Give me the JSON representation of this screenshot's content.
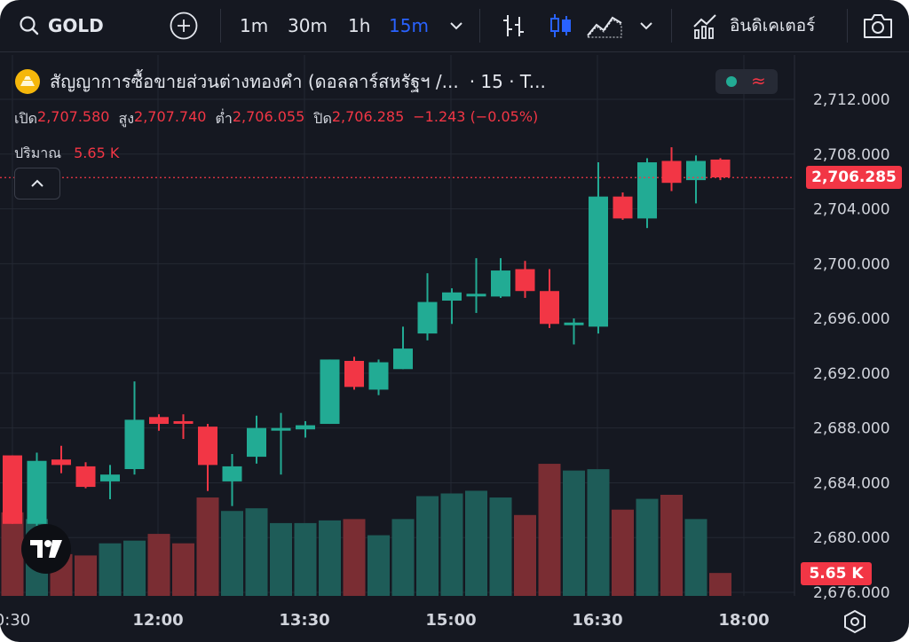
{
  "toolbar": {
    "symbol": "GOLD",
    "intervals": [
      "1m",
      "30m",
      "1h",
      "15m"
    ],
    "active_interval": "15m",
    "indicators_label": "อินดิเคเตอร์"
  },
  "legend": {
    "title": "สัญญาการซื้อขายส่วนต่างทองคำ (ดอลลาร์สหรัฐฯ /...",
    "title_suffix": "· 15 · T...",
    "open_label": "เปิด",
    "open": "2,707.580",
    "high_label": "สูง",
    "high": "2,707.740",
    "low_label": "ต่ำ",
    "low": "2,706.055",
    "close_label": "ปิด",
    "close": "2,706.285",
    "change": "−1.243 (−0.05%)",
    "volume_label": "ปริมาณ",
    "volume": "5.65 K"
  },
  "price_tag": "2,706.285",
  "volume_tag": "5.65 K",
  "colors": {
    "bg": "#151821",
    "up": "#22ab94",
    "down": "#f23645",
    "up_vol": "#1e5c58",
    "down_vol": "#7a2d33",
    "grid": "#242833",
    "text": "#d1d4dc",
    "accent": "#2962ff"
  },
  "chart_data": {
    "type": "candlestick",
    "y_ticks": [
      "2,712.000",
      "2,708.000",
      "2,704.000",
      "2,700.000",
      "2,696.000",
      "2,692.000",
      "2,688.000",
      "2,684.000",
      "2,680.000",
      "2,676.000"
    ],
    "x_ticks": [
      "0:30",
      "12:00",
      "13:30",
      "15:00",
      "16:30",
      "18:00"
    ],
    "ylim": [
      2676,
      2712
    ],
    "candles": [
      {
        "o": 2686.0,
        "h": 2686.0,
        "l": 2681.0,
        "c": 2681.0
      },
      {
        "o": 2681.0,
        "h": 2686.2,
        "l": 2680.8,
        "c": 2685.6
      },
      {
        "o": 2685.7,
        "h": 2686.7,
        "l": 2684.7,
        "c": 2685.3
      },
      {
        "o": 2685.2,
        "h": 2685.5,
        "l": 2683.6,
        "c": 2683.7
      },
      {
        "o": 2684.1,
        "h": 2685.3,
        "l": 2682.8,
        "c": 2684.6
      },
      {
        "o": 2685.0,
        "h": 2691.4,
        "l": 2684.6,
        "c": 2688.6
      },
      {
        "o": 2688.8,
        "h": 2689.0,
        "l": 2687.8,
        "c": 2688.3
      },
      {
        "o": 2688.5,
        "h": 2689.0,
        "l": 2687.2,
        "c": 2688.4
      },
      {
        "o": 2688.1,
        "h": 2688.3,
        "l": 2683.4,
        "c": 2685.3
      },
      {
        "o": 2684.1,
        "h": 2686.1,
        "l": 2682.3,
        "c": 2685.2
      },
      {
        "o": 2685.9,
        "h": 2688.9,
        "l": 2685.4,
        "c": 2688.0
      },
      {
        "o": 2688.0,
        "h": 2689.1,
        "l": 2684.6,
        "c": 2688.0
      },
      {
        "o": 2687.9,
        "h": 2688.5,
        "l": 2687.3,
        "c": 2688.2
      },
      {
        "o": 2688.3,
        "h": 2693.0,
        "l": 2688.3,
        "c": 2693.0
      },
      {
        "o": 2692.9,
        "h": 2693.2,
        "l": 2690.8,
        "c": 2691.0
      },
      {
        "o": 2690.8,
        "h": 2693.0,
        "l": 2690.4,
        "c": 2692.8
      },
      {
        "o": 2692.3,
        "h": 2695.4,
        "l": 2692.3,
        "c": 2693.8
      },
      {
        "o": 2694.9,
        "h": 2699.3,
        "l": 2694.4,
        "c": 2697.2
      },
      {
        "o": 2697.3,
        "h": 2698.2,
        "l": 2695.6,
        "c": 2697.9
      },
      {
        "o": 2697.8,
        "h": 2700.4,
        "l": 2696.4,
        "c": 2697.8
      },
      {
        "o": 2697.6,
        "h": 2700.4,
        "l": 2697.5,
        "c": 2699.5
      },
      {
        "o": 2699.6,
        "h": 2700.2,
        "l": 2697.5,
        "c": 2698.0
      },
      {
        "o": 2698.0,
        "h": 2699.6,
        "l": 2695.3,
        "c": 2695.6
      },
      {
        "o": 2695.7,
        "h": 2696.0,
        "l": 2694.1,
        "c": 2695.7
      },
      {
        "o": 2695.4,
        "h": 2707.4,
        "l": 2694.9,
        "c": 2704.9
      },
      {
        "o": 2704.9,
        "h": 2705.2,
        "l": 2703.2,
        "c": 2703.3
      },
      {
        "o": 2703.3,
        "h": 2707.7,
        "l": 2702.6,
        "c": 2707.4
      },
      {
        "o": 2707.5,
        "h": 2708.5,
        "l": 2705.3,
        "c": 2705.9
      },
      {
        "o": 2706.1,
        "h": 2707.9,
        "l": 2704.4,
        "c": 2707.5
      },
      {
        "o": 2707.6,
        "h": 2707.7,
        "l": 2706.1,
        "c": 2706.3
      }
    ],
    "volume_bars_relative": [
      0.62,
      0.57,
      0.31,
      0.3,
      0.39,
      0.41,
      0.46,
      0.39,
      0.73,
      0.63,
      0.65,
      0.54,
      0.54,
      0.56,
      0.57,
      0.45,
      0.57,
      0.74,
      0.76,
      0.78,
      0.73,
      0.6,
      0.98,
      0.93,
      0.94,
      0.64,
      0.72,
      0.75,
      0.57,
      0.17
    ],
    "last_price": 2706.285
  }
}
